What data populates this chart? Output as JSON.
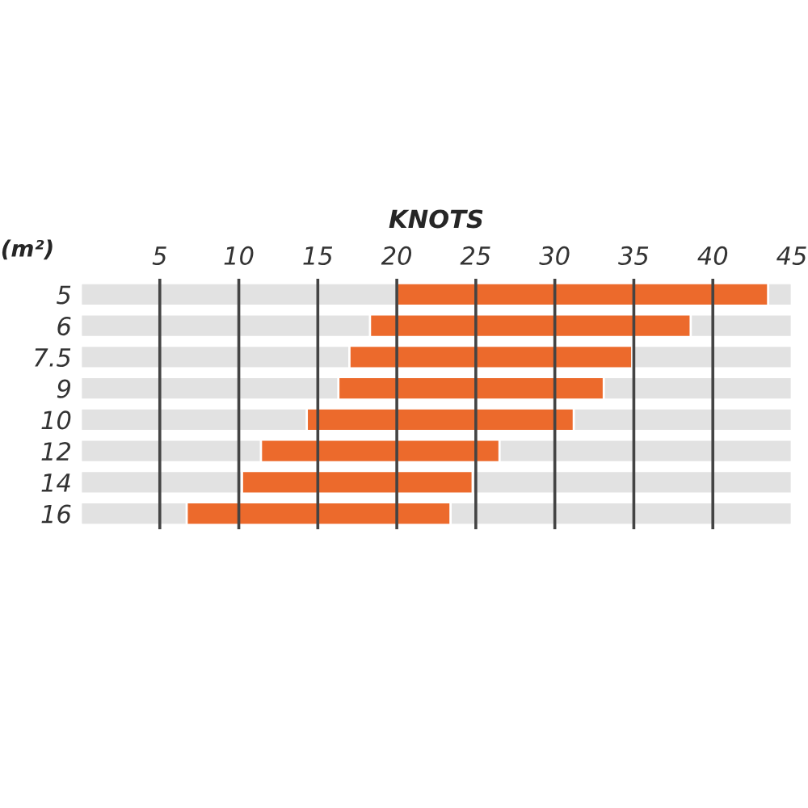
{
  "chart_data": {
    "type": "bar",
    "orientation": "horizontal",
    "xlabel": "KNOTS",
    "ylabel": "(m²)",
    "categories": [
      "5",
      "6",
      "7.5",
      "9",
      "10",
      "12",
      "14",
      "16"
    ],
    "base": [
      20,
      18.3,
      17,
      16.3,
      14.3,
      11.4,
      10.2,
      6.7
    ],
    "values": [
      23.5,
      20.3,
      17.9,
      16.8,
      16.9,
      15.1,
      14.6,
      16.7
    ],
    "color": "#ec6a2c",
    "xlim": [
      0,
      45
    ],
    "xticks": [
      5,
      10,
      15,
      20,
      25,
      30,
      35,
      40,
      45
    ],
    "grid": "x",
    "legend": false
  }
}
